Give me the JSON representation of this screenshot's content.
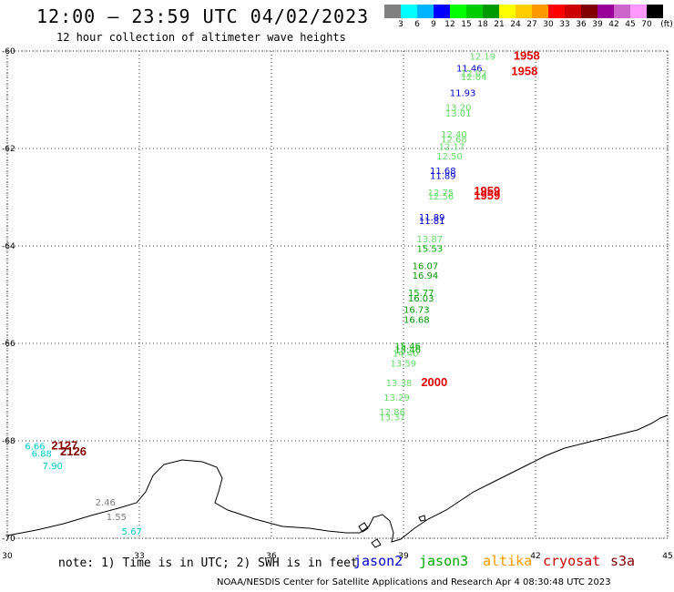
{
  "title": "12:00 – 23:59 UTC 04/02/2023",
  "subtitle": "12 hour collection of altimeter wave heights",
  "scale": {
    "colors": [
      "#808080",
      "#00ffff",
      "#00b4ff",
      "#0000ff",
      "#00ff00",
      "#00cc00",
      "#009900",
      "#ffff00",
      "#ffcc00",
      "#ff9900",
      "#ff0000",
      "#cc0000",
      "#800000",
      "#990099",
      "#cc66cc",
      "#ff99ff",
      "#000000"
    ],
    "labels": [
      "3",
      "6",
      "9",
      "12",
      "15",
      "18",
      "21",
      "24",
      "27",
      "30",
      "33",
      "36",
      "39",
      "42",
      "45",
      "70",
      "(ft)"
    ]
  },
  "map": {
    "lon_range": [
      30,
      45
    ],
    "lat_range": [
      -60,
      -70
    ],
    "x_ticks": [
      "30",
      "33",
      "36",
      "39",
      "42",
      "45"
    ],
    "y_ticks": [
      "-60",
      "-62",
      "-64",
      "-66",
      "-68",
      "-70"
    ]
  },
  "chart_data": {
    "type": "scatter",
    "xlabel": "",
    "ylabel": "",
    "xlim": [
      30,
      45
    ],
    "ylim": [
      -70,
      -60
    ],
    "points": [
      {
        "label": "12.19",
        "lon": 40.5,
        "lat": -60.1,
        "color": "#66dd66"
      },
      {
        "label": "1958",
        "lon": 41.5,
        "lat": -60.1,
        "color": "#e00000",
        "bold": true
      },
      {
        "label": "11.46",
        "lon": 40.2,
        "lat": -60.35,
        "color": "#0000cc"
      },
      {
        "label": "12.02",
        "lon": 40.3,
        "lat": -60.45,
        "color": "#66dd66"
      },
      {
        "label": "1958",
        "lon": 41.45,
        "lat": -60.42,
        "color": "#e00000",
        "bold": true
      },
      {
        "label": "12.04",
        "lon": 40.3,
        "lat": -60.52,
        "color": "#66dd66"
      },
      {
        "label": "11.93",
        "lon": 40.05,
        "lat": -60.85,
        "color": "#0000cc"
      },
      {
        "label": "13.20",
        "lon": 39.95,
        "lat": -61.15,
        "color": "#66dd66"
      },
      {
        "label": "13.01",
        "lon": 39.95,
        "lat": -61.27,
        "color": "#66dd66"
      },
      {
        "label": "12.40",
        "lon": 39.85,
        "lat": -61.7,
        "color": "#66dd66"
      },
      {
        "label": "12.68",
        "lon": 39.85,
        "lat": -61.8,
        "color": "#66dd66"
      },
      {
        "label": "12.17",
        "lon": 39.8,
        "lat": -61.95,
        "color": "#66dd66"
      },
      {
        "label": "12.50",
        "lon": 39.75,
        "lat": -62.15,
        "color": "#66dd66"
      },
      {
        "label": "11.68",
        "lon": 39.6,
        "lat": -62.45,
        "color": "#0000cc"
      },
      {
        "label": "11.89",
        "lon": 39.6,
        "lat": -62.55,
        "color": "#0000cc"
      },
      {
        "label": "12.75",
        "lon": 39.55,
        "lat": -62.9,
        "color": "#66dd66"
      },
      {
        "label": "12.56",
        "lon": 39.55,
        "lat": -62.97,
        "color": "#66dd66"
      },
      {
        "label": "1959",
        "lon": 40.6,
        "lat": -62.88,
        "color": "#e00000",
        "bold": true
      },
      {
        "label": "1959",
        "lon": 40.6,
        "lat": -62.97,
        "color": "#e00000",
        "bold": true
      },
      {
        "label": "11.89",
        "lon": 39.35,
        "lat": -63.4,
        "color": "#0000cc"
      },
      {
        "label": "11.81",
        "lon": 39.35,
        "lat": -63.48,
        "color": "#0000cc"
      },
      {
        "label": "13.87",
        "lon": 39.3,
        "lat": -63.85,
        "color": "#66dd66"
      },
      {
        "label": "15.53",
        "lon": 39.3,
        "lat": -64.05,
        "color": "#00aa00"
      },
      {
        "label": "16.07",
        "lon": 39.2,
        "lat": -64.4,
        "color": "#009900"
      },
      {
        "label": "16.94",
        "lon": 39.2,
        "lat": -64.6,
        "color": "#009900"
      },
      {
        "label": "15.77",
        "lon": 39.1,
        "lat": -64.95,
        "color": "#00aa00"
      },
      {
        "label": "16.03",
        "lon": 39.1,
        "lat": -65.07,
        "color": "#009900"
      },
      {
        "label": "16.73",
        "lon": 39.0,
        "lat": -65.3,
        "color": "#009900"
      },
      {
        "label": "16.68",
        "lon": 39.0,
        "lat": -65.5,
        "color": "#009900"
      },
      {
        "label": "15.46",
        "lon": 38.8,
        "lat": -66.05,
        "color": "#00aa00"
      },
      {
        "label": "15.46",
        "lon": 38.8,
        "lat": -66.12,
        "color": "#00aa00"
      },
      {
        "label": "14.40",
        "lon": 38.75,
        "lat": -66.2,
        "color": "#66dd66"
      },
      {
        "label": "13.59",
        "lon": 38.7,
        "lat": -66.4,
        "color": "#66dd66"
      },
      {
        "label": "2000",
        "lon": 39.4,
        "lat": -66.8,
        "color": "#e00000",
        "bold": true
      },
      {
        "label": "13.38",
        "lon": 38.6,
        "lat": -66.8,
        "color": "#66dd66"
      },
      {
        "label": "13.29",
        "lon": 38.55,
        "lat": -67.1,
        "color": "#66dd66"
      },
      {
        "label": "12.86",
        "lon": 38.45,
        "lat": -67.4,
        "color": "#66dd66"
      },
      {
        "label": "13.37",
        "lon": 38.45,
        "lat": -67.5,
        "color": "#66dd66"
      },
      {
        "label": "6.66",
        "lon": 30.4,
        "lat": -68.1,
        "color": "#00cccc"
      },
      {
        "label": "2127",
        "lon": 31.0,
        "lat": -68.1,
        "color": "#800000",
        "bold": true
      },
      {
        "label": "6.88",
        "lon": 30.55,
        "lat": -68.25,
        "color": "#00cccc"
      },
      {
        "label": "2126",
        "lon": 31.2,
        "lat": -68.22,
        "color": "#800000",
        "bold": true
      },
      {
        "label": "7.90",
        "lon": 30.8,
        "lat": -68.5,
        "color": "#00cccc"
      },
      {
        "label": "2.46",
        "lon": 32.0,
        "lat": -69.25,
        "color": "#808080"
      },
      {
        "label": "1.55",
        "lon": 32.25,
        "lat": -69.55,
        "color": "#808080"
      },
      {
        "label": "5.67",
        "lon": 32.6,
        "lat": -69.85,
        "color": "#00cccc"
      }
    ]
  },
  "note": "note: 1) Time is in UTC; 2) SWH is in feet",
  "legend": [
    {
      "name": "jason2",
      "color": "#0000cc"
    },
    {
      "name": "jason3",
      "color": "#00aa00"
    },
    {
      "name": "altika",
      "color": "#ff9900"
    },
    {
      "name": "cryosat",
      "color": "#cc0000"
    },
    {
      "name": "s3a",
      "color": "#800000"
    }
  ],
  "footer": "NOAA/NESDIS Center for Satellite Applications and Research   Apr  4 08:30:48 UTC 2023"
}
